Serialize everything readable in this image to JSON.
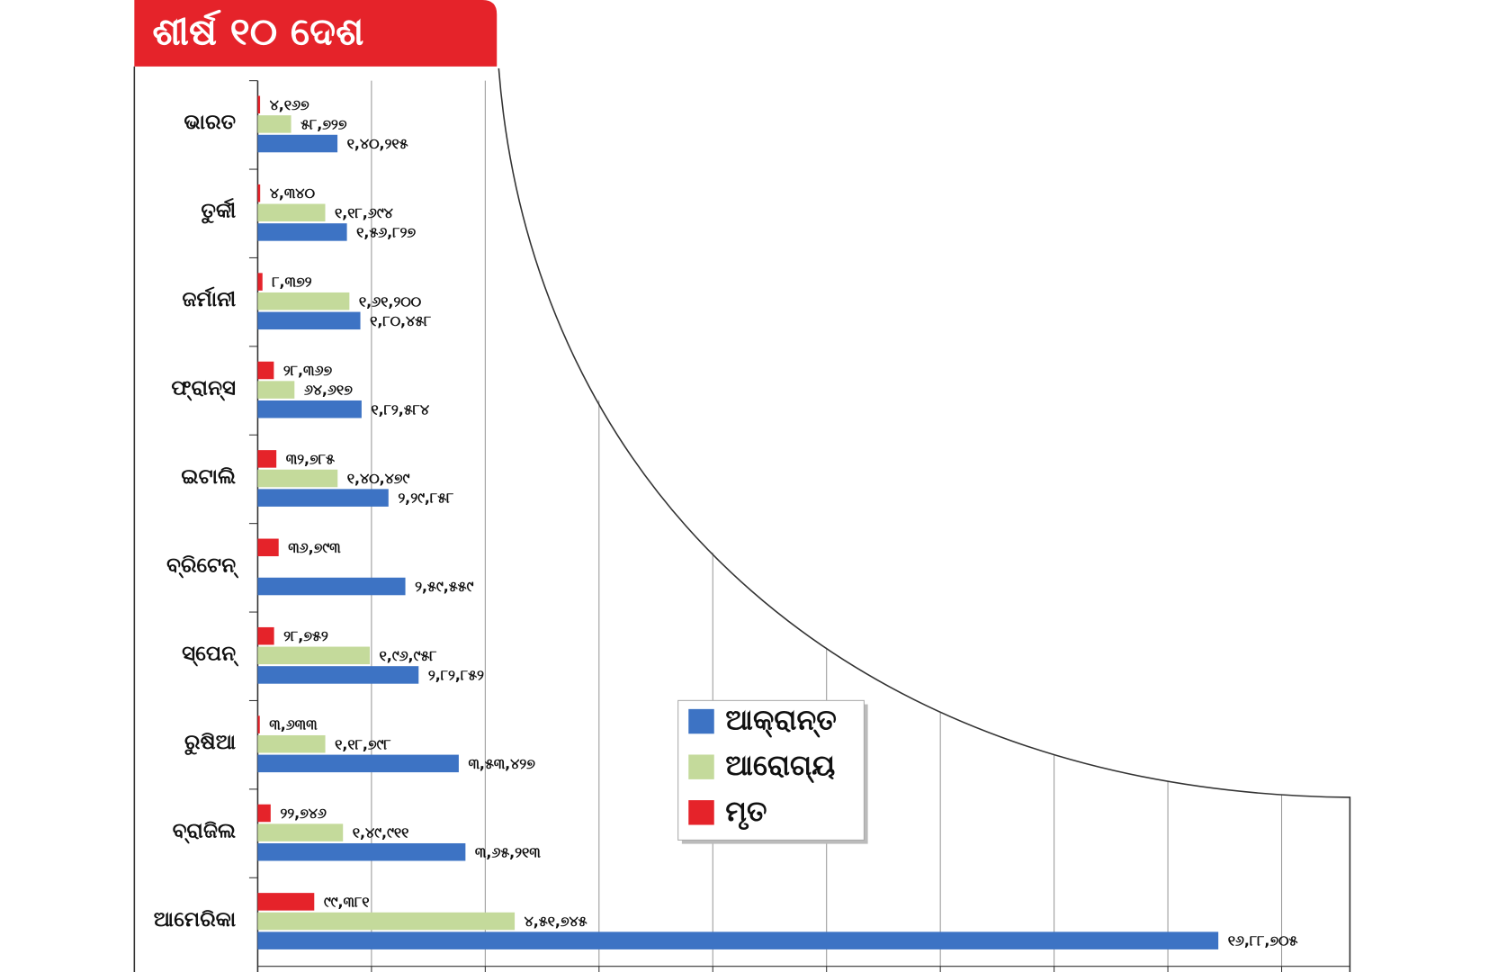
{
  "chart_data": {
    "type": "bar",
    "orientation": "horizontal",
    "title": "ଶୀର୍ଷ ୧୦ ଦେଶ",
    "categories": [
      "ଭାରତ",
      "ତୁର୍କୀ",
      "ଜର୍ମାନୀ",
      "ଫ୍ରାନ୍ସ",
      "ଇଟାଲି",
      "ବ୍ରିଟେନ୍",
      "ସ୍ପେନ୍",
      "ରୁଷିଆ",
      "ବ୍ରାଜିଲ",
      "ଆମେରିକା"
    ],
    "series": [
      {
        "name": "ଆକ୍ରାନ୍ତ",
        "color": "#3d73c4",
        "values": [
          140215,
          156827,
          180458,
          182584,
          229858,
          259559,
          282852,
          353427,
          365213,
          1688705
        ],
        "value_labels": [
          "୧,୪୦,୨୧୫",
          "୧,୫୬,୮୨୭",
          "୧,୮୦,୪୫୮",
          "୧,୮୨,୫୮୪",
          "୨,୨୯,୮୫୮",
          "୨,୫୯,୫୫୯",
          "୨,୮୨,୮୫୨",
          "୩,୫୩,୪୨୭",
          "୩,୬୫,୨୧୩",
          "୧୬,୮୮,୭୦୫"
        ]
      },
      {
        "name": "ଆରୋଗ୍ୟ",
        "color": "#c4da9b",
        "values": [
          58727,
          118694,
          161200,
          64617,
          140479,
          null,
          196958,
          118798,
          149911,
          451745
        ],
        "value_labels": [
          "୫୮,୭୨୭",
          "୧,୧୮,୬୯୪",
          "୧,୬୧,୨୦୦",
          "୬୪,୬୧୭",
          "୧,୪୦,୪୭୯",
          null,
          "୧,୯୬,୯୫୮",
          "୧,୧୮,୭୯୮",
          "୧,୪୯,୯୧୧",
          "୪,୫୧,୭୪୫"
        ]
      },
      {
        "name": "ମୃତ",
        "color": "#e5232a",
        "values": [
          4167,
          4340,
          8372,
          28367,
          32785,
          36793,
          28752,
          3633,
          22746,
          99381
        ],
        "value_labels": [
          "୪,୧୬୭",
          "୪,୩୪୦",
          "୮,୩୭୨",
          "୨୮,୩୬୭",
          "୩୨,୭୮୫",
          "୩୬,୭୯୩",
          "୨୮,୭୫୨",
          "୩,୬୩୩",
          "୨୨,୭୪୬",
          "୯୯,୩୮୧"
        ]
      }
    ],
    "xlim": [
      0,
      1920000
    ],
    "xticks": [
      0,
      200000,
      400000,
      600000,
      800000,
      1000000,
      1200000,
      1400000,
      1600000,
      1800000
    ],
    "grid": true,
    "legend": "lower-center"
  }
}
